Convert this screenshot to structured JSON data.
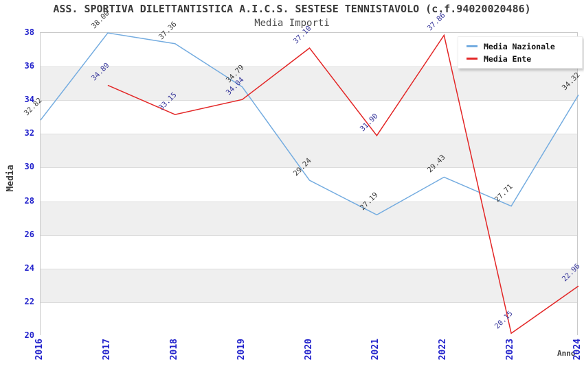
{
  "header": {
    "title": "ASS. SPORTIVA DILETTANTISTICA A.I.C.S. SESTESE TENNISTAVOLO (c.f.94020020486)",
    "subtitle": "Media Importi"
  },
  "chart_data": {
    "type": "line",
    "x": [
      2016,
      2017,
      2018,
      2019,
      2020,
      2021,
      2022,
      2023,
      2024
    ],
    "series": [
      {
        "name": "Media Nazionale",
        "color": "#74ACE0",
        "label_color": "#3a3a3a",
        "values": [
          32.82,
          38.0,
          37.36,
          34.79,
          29.24,
          27.19,
          29.43,
          27.71,
          34.32
        ]
      },
      {
        "name": "Media Ente",
        "color": "#E32626",
        "label_color": "#333399",
        "values": [
          null,
          34.89,
          33.15,
          34.04,
          37.1,
          31.9,
          37.86,
          20.15,
          22.96
        ]
      }
    ],
    "xlabel": "Anno",
    "ylabel": "Media",
    "ylim": [
      20,
      38
    ],
    "ytick_step": 2,
    "xtick_labels": [
      "2016",
      "2017",
      "2018",
      "2019",
      "2020",
      "2021",
      "2022",
      "2023",
      "2024"
    ],
    "ytick_labels": [
      "38",
      "36",
      "34",
      "32",
      "30",
      "28",
      "26",
      "24",
      "22",
      "20"
    ],
    "grid": true,
    "legend_position": "top-right",
    "band_colors": [
      "#ffffff",
      "#efefef"
    ],
    "tick_label_color": "#2323cc",
    "gridline_color": "#dcdcdc"
  }
}
